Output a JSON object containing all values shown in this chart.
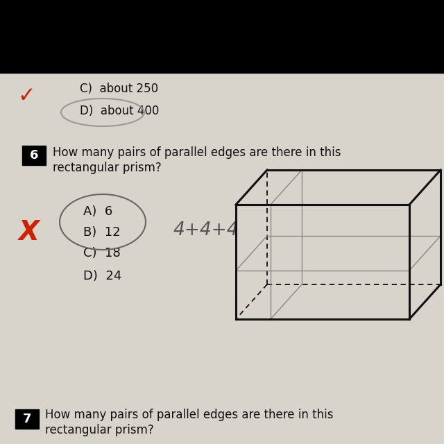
{
  "bg_color": "#ccc8c0",
  "paper_color": "#d8d4cc",
  "black_bar_color": "#000000",
  "prev_answer_c": "C)  about 250",
  "prev_answer_d": "D)  about 400",
  "checkmark_color": "#cc2200",
  "q6_label": "6",
  "q6_question_line1": "How many pairs of parallel edges are there in this",
  "q6_question_line2": "rectangular prism?",
  "answers": [
    {
      "label": "A)",
      "value": "6"
    },
    {
      "label": "B)",
      "value": "12"
    },
    {
      "label": "C)",
      "value": "18"
    },
    {
      "label": "D)",
      "value": "24"
    }
  ],
  "handwritten_text": "4+4+4",
  "handwritten_color": "#555555",
  "x_mark_color": "#cc2200",
  "prism_color": "#111111",
  "prism_lw": 2.2,
  "inner_line_color": "#888888",
  "inner_line_lw": 1.0,
  "q7_label": "7",
  "q7_question_line1": "How many pairs of parallel edges are there in this",
  "q7_question_line2": "rectangular prism?"
}
